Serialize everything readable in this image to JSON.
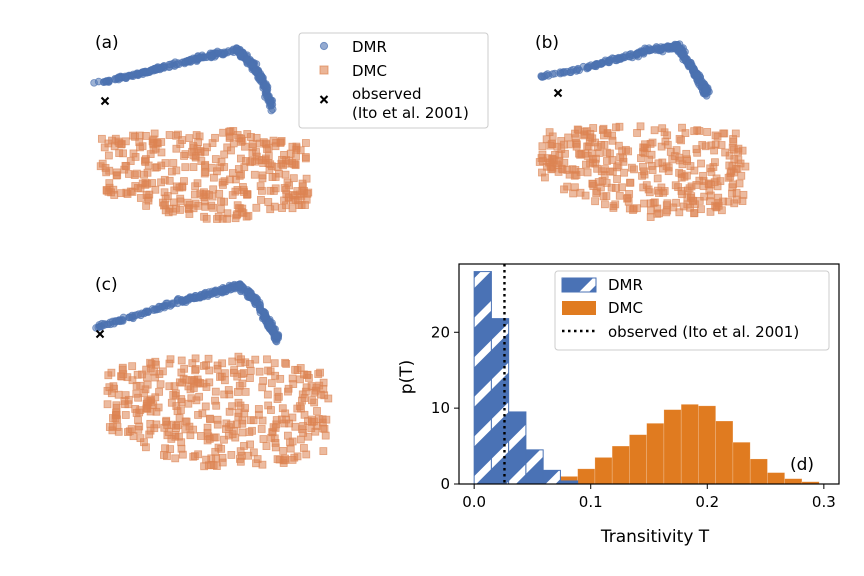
{
  "panel_labels": {
    "a": "(a)",
    "b": "(b)",
    "c": "(c)",
    "d": "(d)"
  },
  "legend_top": {
    "dmr": "DMR",
    "dmc": "DMC",
    "observed_line1": "observed",
    "observed_line2": "(Ito et al. 2001)"
  },
  "colors": {
    "dmr": "#4c72b0",
    "dmc": "#dd8452",
    "dmr_solid": "#4a72b5",
    "dmc_solid": "#e07b20",
    "observed": "#000000"
  },
  "chart_data": {
    "type": "bar",
    "title": "",
    "xlabel": "Transitivity T",
    "ylabel": "p(T)",
    "xlim": [
      -0.013,
      0.313
    ],
    "ylim": [
      0,
      29
    ],
    "xticks": [
      "0.0",
      "0.1",
      "0.2",
      "0.3"
    ],
    "xtick_values": [
      0.0,
      0.1,
      0.2,
      0.3
    ],
    "yticks": [
      "0",
      "10",
      "20"
    ],
    "ytick_values": [
      0,
      10,
      20
    ],
    "bin_width": 0.0148,
    "series": [
      {
        "name": "DMR",
        "style": "hatched",
        "bin_starts": [
          0.0,
          0.0148,
          0.0296,
          0.0444,
          0.0592,
          0.074
        ],
        "values": [
          28.0,
          21.8,
          9.5,
          4.5,
          1.8,
          0.4
        ]
      },
      {
        "name": "DMC",
        "style": "solid",
        "bin_starts": [
          0.074,
          0.0888,
          0.1036,
          0.1184,
          0.1332,
          0.148,
          0.1628,
          0.1776,
          0.1924,
          0.2072,
          0.222,
          0.2368,
          0.2516,
          0.2664,
          0.2812
        ],
        "values": [
          1.0,
          2.0,
          3.5,
          5.0,
          6.5,
          8.0,
          9.8,
          10.5,
          10.3,
          8.3,
          5.5,
          3.3,
          1.5,
          0.7,
          0.3
        ]
      }
    ],
    "observed": {
      "name": "observed (Ito et al. 2001)",
      "x": 0.026
    },
    "legend": {
      "placement": "top-right",
      "entries": [
        "DMR",
        "DMC",
        "observed (Ito et al. 2001)"
      ]
    }
  }
}
